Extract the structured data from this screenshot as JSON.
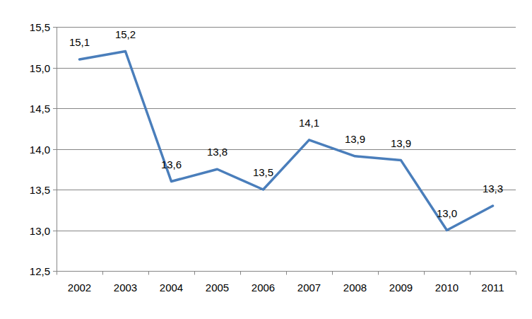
{
  "chart_data": {
    "type": "line",
    "categories": [
      "2002",
      "2003",
      "2004",
      "2005",
      "2006",
      "2007",
      "2008",
      "2009",
      "2010",
      "2011"
    ],
    "values": [
      15.1,
      15.2,
      13.6,
      13.75,
      13.5,
      14.11,
      13.91,
      13.86,
      13.0,
      13.3
    ],
    "value_labels": [
      "15,1",
      "15,2",
      "13,6",
      "13,8",
      "13,5",
      "14,1",
      "13,9",
      "13,9",
      "13,0",
      "13,3"
    ],
    "color": "#4a7ebb",
    "ylim": [
      12.5,
      15.5
    ],
    "yticks": [
      {
        "value": 12.5,
        "label": "12,5"
      },
      {
        "value": 13.0,
        "label": "13,0"
      },
      {
        "value": 13.5,
        "label": "13,5"
      },
      {
        "value": 14.0,
        "label": "14,0"
      },
      {
        "value": 14.5,
        "label": "14,5"
      },
      {
        "value": 15.0,
        "label": "15,0"
      },
      {
        "value": 15.5,
        "label": "15,5"
      }
    ],
    "grid": true,
    "data_labels": true
  }
}
